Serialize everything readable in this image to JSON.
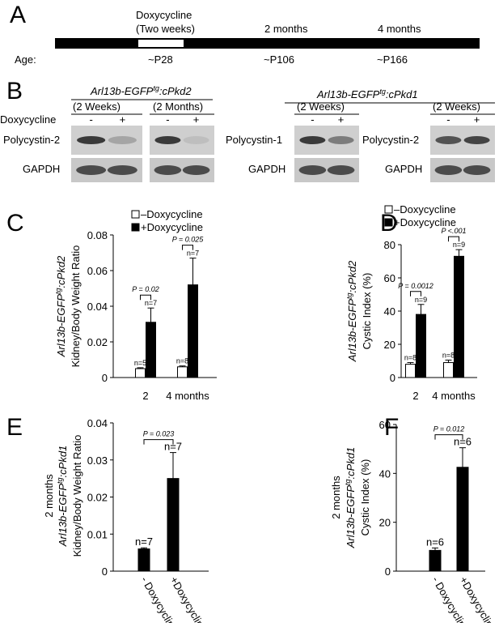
{
  "panel_a": {
    "label": "A",
    "treatment": "Doxycycline",
    "treatment_period": "(Two weeks)",
    "time_1": "2 months",
    "time_2": "4 months",
    "age_label": "Age:",
    "ages": [
      "~P28",
      "~P106",
      "~P166"
    ]
  },
  "panel_b": {
    "label": "B",
    "row_label": "Doxycycline",
    "genotype_1": {
      "gene": "Arl13b-EGFP",
      "sup": "tg",
      "rest": ":cPkd2"
    },
    "genotype_2": {
      "gene": "Arl13b-EGFP",
      "sup": "tg",
      "rest": ":cPkd1"
    },
    "blots": [
      {
        "period": "(2 Weeks)",
        "protein": "Polycystin-2",
        "control": "GAPDH",
        "lanes": [
          "-",
          "+"
        ]
      },
      {
        "period": "(2 Months)",
        "lanes": [
          "-",
          "+"
        ]
      },
      {
        "period": "(2 Weeks)",
        "protein": "Polycystin-1",
        "control": "GAPDH",
        "lanes": [
          "-",
          "+"
        ]
      },
      {
        "period": "(2 Weeks)",
        "protein": "Polycystin-2",
        "control": "GAPDH",
        "lanes": [
          "-",
          "+"
        ]
      }
    ]
  },
  "chart_data": [
    {
      "type": "bar",
      "panel": "C",
      "ylabel": {
        "gene": "Arl13b-EGFP",
        "sup": "tg",
        "rest": ":cPkd2",
        "measure": "Kidney/Body Weight Ratio"
      },
      "categories": [
        "2",
        "4 months"
      ],
      "series": [
        {
          "name": "–Doxycycline",
          "color": "#ffffff",
          "values": [
            0.005,
            0.006
          ],
          "errors": [
            0.0005,
            0.0005
          ],
          "n_labels": [
            "n=5",
            "n=8"
          ]
        },
        {
          "name": "+Doxycycline",
          "color": "#000000",
          "values": [
            0.031,
            0.052
          ],
          "errors": [
            0.008,
            0.015
          ],
          "n_labels": [
            "n=7",
            "n=7"
          ]
        }
      ],
      "p_values": [
        "P = 0.02",
        "P = 0.025"
      ],
      "ylim": [
        0,
        0.08
      ],
      "yticks": [
        0,
        0.02,
        0.04,
        0.06,
        0.08
      ]
    },
    {
      "type": "bar",
      "panel": "D",
      "ylabel": {
        "gene": "Arl13b-EGFP",
        "sup": "tg",
        "rest": ":cPkd2",
        "measure": "Cystic Index (%)"
      },
      "categories": [
        "2",
        "4 months"
      ],
      "series": [
        {
          "name": "–Doxycycline",
          "color": "#ffffff",
          "values": [
            8,
            9
          ],
          "errors": [
            1,
            1.5
          ],
          "n_labels": [
            "n=8",
            "n=8"
          ]
        },
        {
          "name": "+Doxycycline",
          "color": "#000000",
          "values": [
            38,
            73
          ],
          "errors": [
            6,
            4
          ],
          "n_labels": [
            "n=9",
            "n=9"
          ]
        }
      ],
      "p_values": [
        "P = 0.0012",
        "P <.001"
      ],
      "ylim": [
        0,
        80
      ],
      "yticks": [
        0,
        20,
        40,
        60,
        80
      ]
    },
    {
      "type": "bar",
      "panel": "E",
      "ylabel": {
        "prefix": "2 months",
        "gene": "Arl13b-EGFP",
        "sup": "tg",
        "rest": ":cPkd1",
        "measure": "Kidney/Body Weight Ratio"
      },
      "categories": [
        "- Doxycycline",
        "+Doxycycline"
      ],
      "values": [
        0.006,
        0.025
      ],
      "errors": [
        0.0003,
        0.007
      ],
      "color": "#000000",
      "n_labels": [
        "n=7",
        "n=7"
      ],
      "p_value": "P = 0.023",
      "ylim": [
        0,
        0.04
      ],
      "yticks": [
        0,
        0.01,
        0.02,
        0.03,
        0.04
      ]
    },
    {
      "type": "bar",
      "panel": "F",
      "ylabel": {
        "prefix": "2 months",
        "gene": "Arl13b-EGFP",
        "sup": "tg",
        "rest": ":cPkd1",
        "measure": "Cystic Index (%)"
      },
      "categories": [
        "- Doxycycline",
        "+Doxycycline"
      ],
      "values": [
        8.5,
        42.5
      ],
      "errors": [
        1,
        8
      ],
      "color": "#000000",
      "n_labels": [
        "n=6",
        "n=6"
      ],
      "p_value": "P = 0.012",
      "ylim": [
        0,
        60
      ],
      "yticks": [
        0,
        20,
        40,
        60
      ]
    }
  ]
}
